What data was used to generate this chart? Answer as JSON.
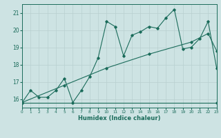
{
  "xlabel": "Humidex (Indice chaleur)",
  "x_range": [
    0,
    23
  ],
  "y_range": [
    15.5,
    21.5
  ],
  "yticks": [
    16,
    17,
    18,
    19,
    20,
    21
  ],
  "xticks": [
    0,
    1,
    2,
    3,
    4,
    5,
    6,
    7,
    8,
    9,
    10,
    11,
    12,
    13,
    14,
    15,
    16,
    17,
    18,
    19,
    20,
    21,
    22,
    23
  ],
  "background_color": "#cde3e3",
  "line_color": "#1a6b5a",
  "grid_color": "#b8d0d0",
  "flat_line": {
    "x": [
      0,
      23
    ],
    "y": [
      15.8,
      15.8
    ]
  },
  "diagonal_line": {
    "x": [
      0,
      5,
      10,
      15,
      20,
      22,
      23
    ],
    "y": [
      15.8,
      16.8,
      17.8,
      18.6,
      19.3,
      19.8,
      18.8
    ]
  },
  "zigzag_line": {
    "x": [
      0,
      1,
      2,
      3,
      4,
      5,
      6,
      7,
      8,
      9,
      10,
      11,
      12,
      13,
      14,
      15,
      16,
      17,
      18,
      19,
      20,
      21,
      22,
      23
    ],
    "y": [
      15.8,
      16.5,
      16.1,
      16.1,
      16.5,
      17.2,
      15.8,
      16.5,
      17.3,
      18.4,
      20.5,
      20.2,
      18.5,
      19.7,
      19.9,
      20.2,
      20.1,
      20.7,
      21.2,
      18.9,
      19.0,
      19.5,
      20.5,
      17.8
    ]
  },
  "figwidth": 3.2,
  "figheight": 2.0,
  "dpi": 100
}
